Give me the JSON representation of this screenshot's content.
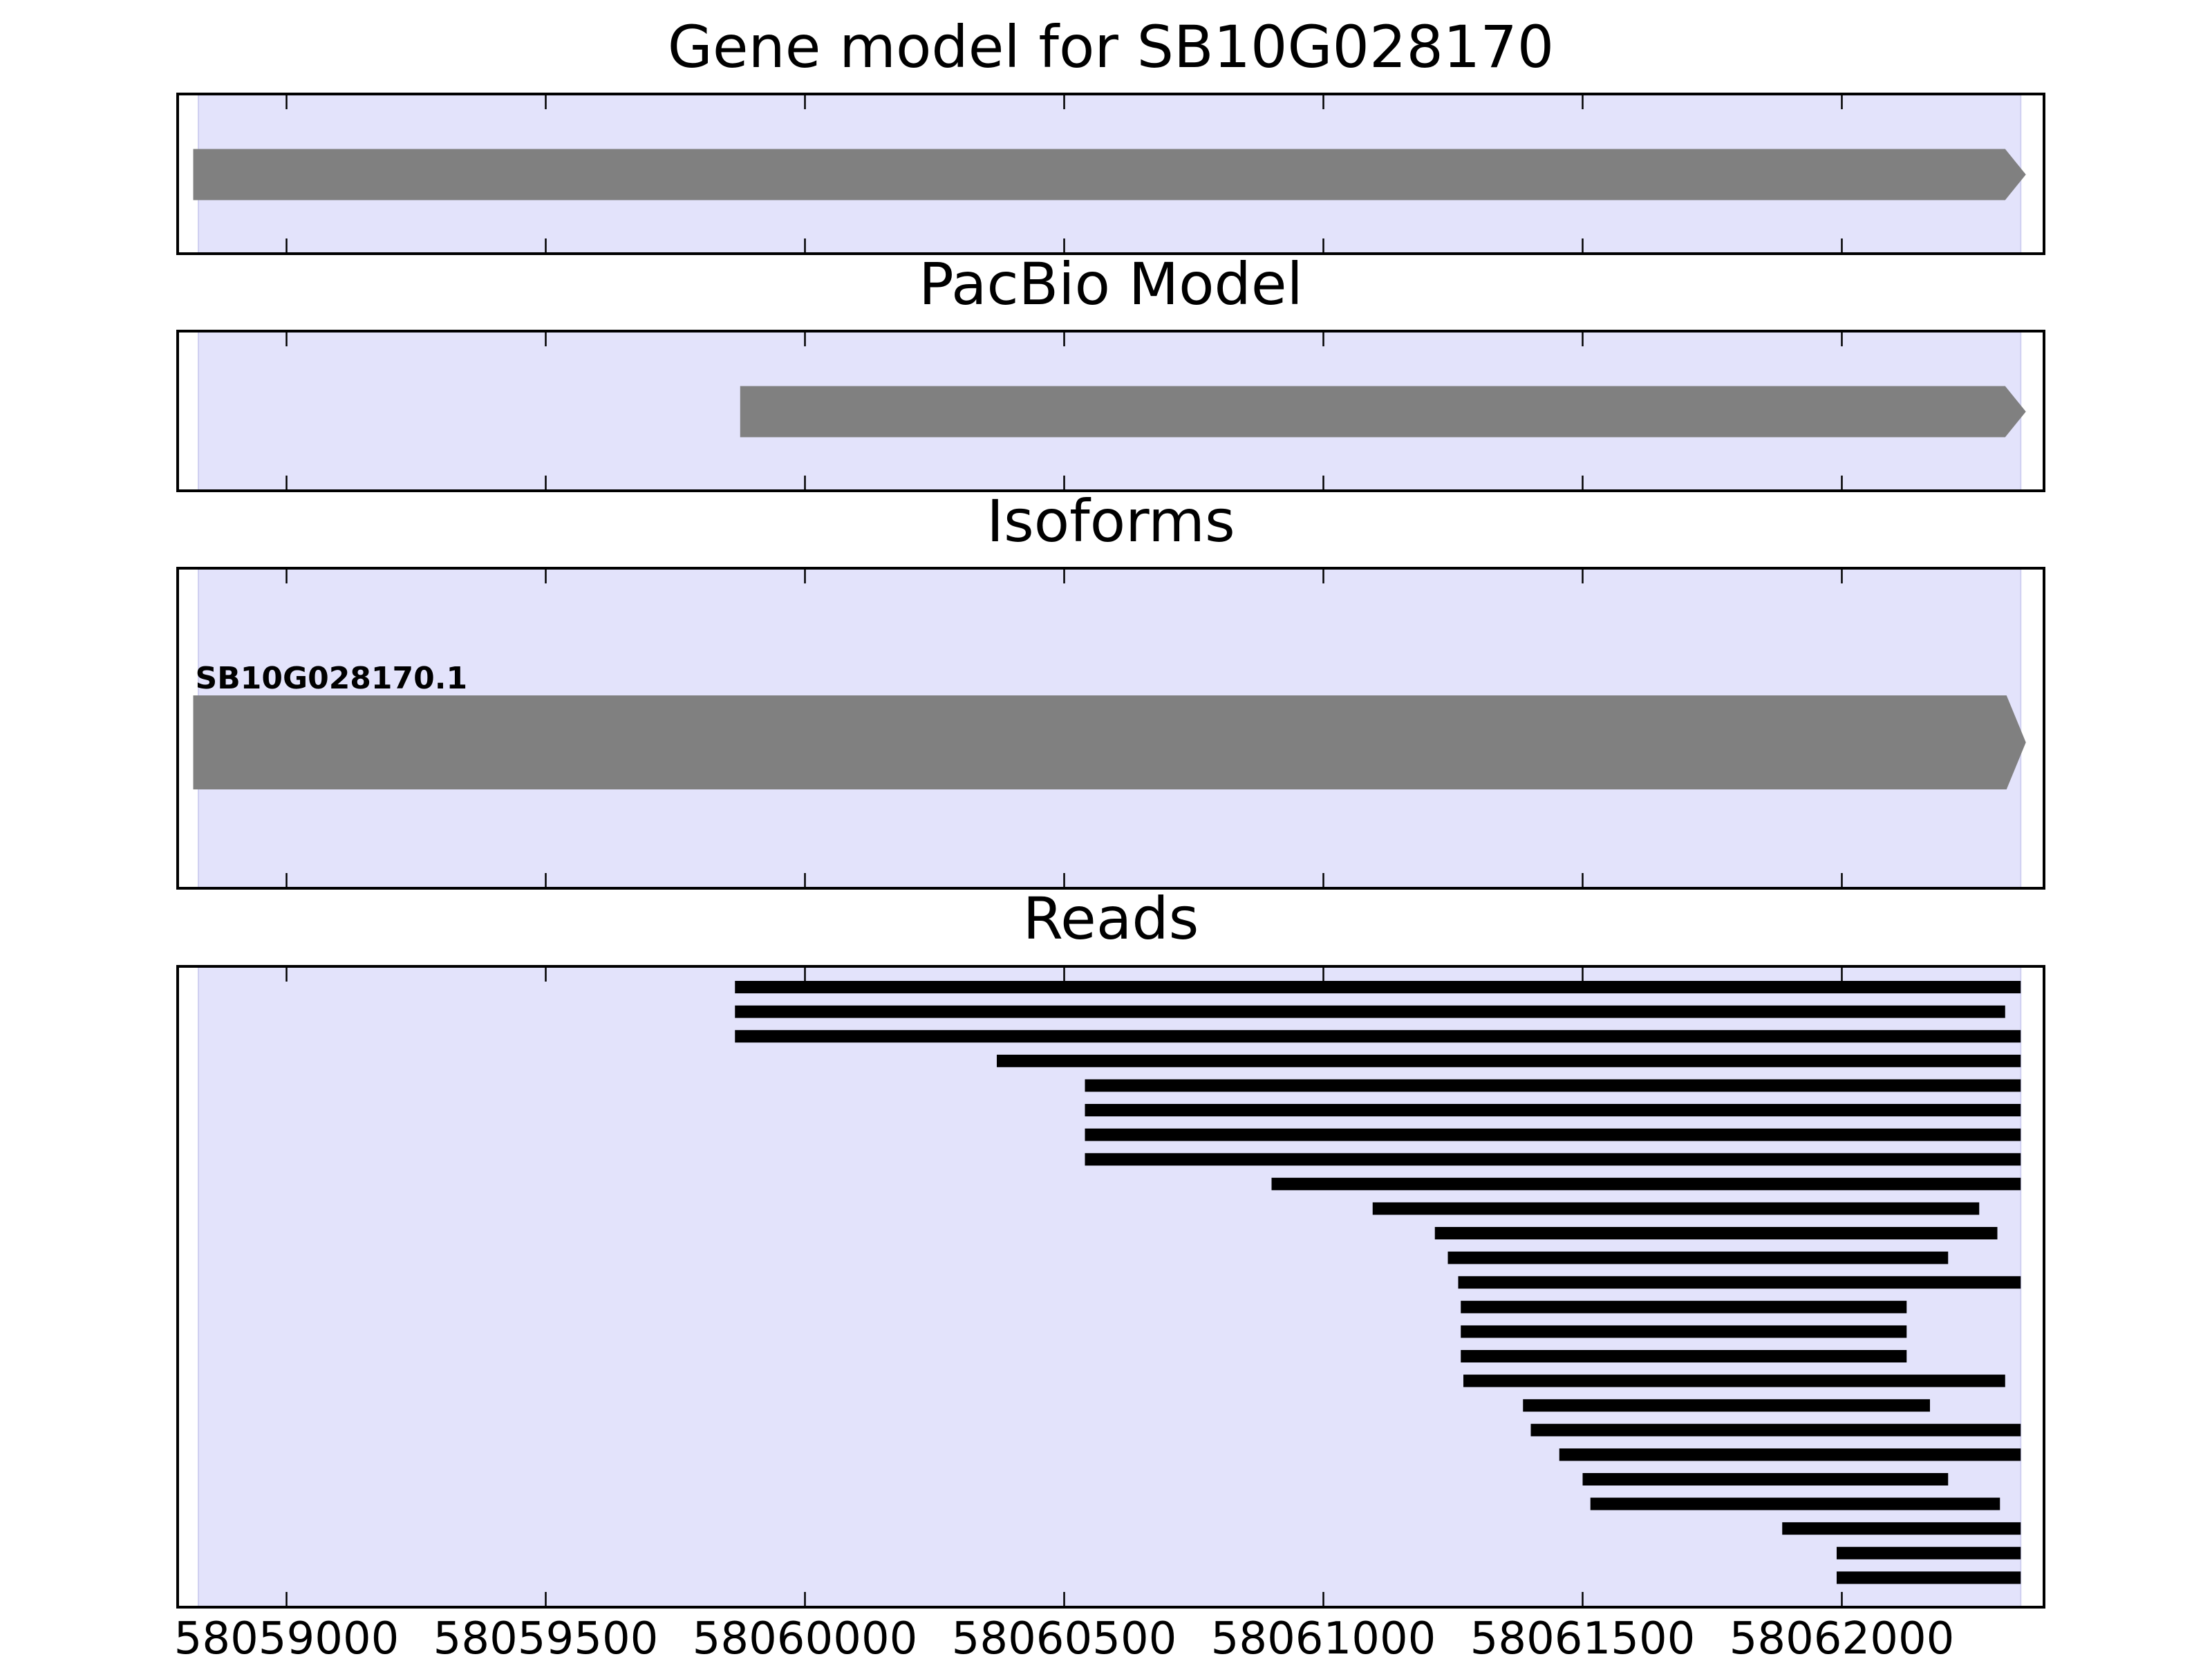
{
  "chart_data": {
    "type": "gene-track",
    "x_axis": {
      "range": [
        58058790,
        58062390
      ],
      "ticks": [
        58059000,
        58059500,
        58060000,
        58060500,
        58061000,
        58061500,
        58062000
      ],
      "tick_labels": [
        "58059000",
        "58059500",
        "58060000",
        "58060500",
        "58061000",
        "58061500",
        "58062000"
      ]
    },
    "shaded_region": {
      "start": 58058830,
      "end": 58062345,
      "color": "#e3e3fb"
    },
    "panels": [
      {
        "id": "gene-model",
        "title": "Gene model for SB10G028170",
        "features": [
          {
            "start": 58058820,
            "end": 58062355,
            "strand": "+",
            "color": "#808080"
          }
        ]
      },
      {
        "id": "pacbio-model",
        "title": "PacBio Model",
        "features": [
          {
            "start": 58059875,
            "end": 58062355,
            "strand": "+",
            "color": "#808080"
          }
        ]
      },
      {
        "id": "isoforms",
        "title": "Isoforms",
        "features": [
          {
            "label": "SB10G028170.1",
            "start": 58058820,
            "end": 58062355,
            "strand": "+",
            "color": "#808080"
          }
        ]
      },
      {
        "id": "reads",
        "title": "Reads",
        "color": "#000000",
        "reads": [
          {
            "start": 58059865,
            "end": 58062345
          },
          {
            "start": 58059865,
            "end": 58062315
          },
          {
            "start": 58059865,
            "end": 58062345
          },
          {
            "start": 58060370,
            "end": 58062345
          },
          {
            "start": 58060540,
            "end": 58062345
          },
          {
            "start": 58060540,
            "end": 58062345
          },
          {
            "start": 58060540,
            "end": 58062345
          },
          {
            "start": 58060540,
            "end": 58062345
          },
          {
            "start": 58060900,
            "end": 58062345
          },
          {
            "start": 58061095,
            "end": 58062265
          },
          {
            "start": 58061215,
            "end": 58062300
          },
          {
            "start": 58061240,
            "end": 58062205
          },
          {
            "start": 58061260,
            "end": 58062345
          },
          {
            "start": 58061265,
            "end": 58062125
          },
          {
            "start": 58061265,
            "end": 58062125
          },
          {
            "start": 58061265,
            "end": 58062125
          },
          {
            "start": 58061270,
            "end": 58062315
          },
          {
            "start": 58061385,
            "end": 58062170
          },
          {
            "start": 58061400,
            "end": 58062345
          },
          {
            "start": 58061455,
            "end": 58062345
          },
          {
            "start": 58061500,
            "end": 58062205
          },
          {
            "start": 58061515,
            "end": 58062305
          },
          {
            "start": 58061885,
            "end": 58062345
          },
          {
            "start": 58061990,
            "end": 58062345
          },
          {
            "start": 58061990,
            "end": 58062345
          }
        ]
      }
    ]
  }
}
